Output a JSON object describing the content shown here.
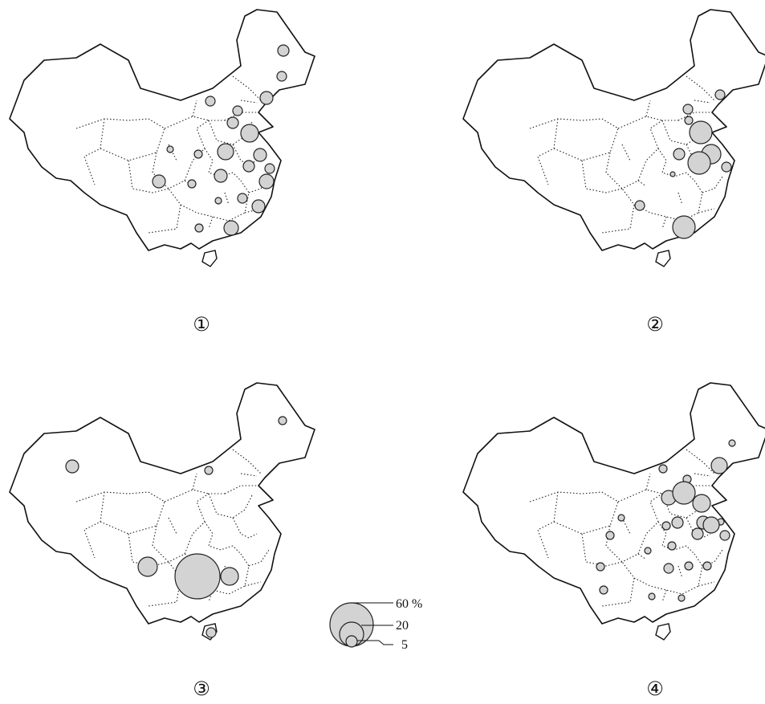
{
  "colors": {
    "bubble_fill": "#d3d3d3",
    "outline": "#111111"
  },
  "panels": [
    {
      "label": "①"
    },
    {
      "label": "②"
    },
    {
      "label": "③"
    },
    {
      "label": "④"
    }
  ],
  "legend": {
    "values": [
      60,
      20,
      5
    ],
    "labels": [
      "60 %",
      "20",
      "5"
    ]
  }
}
